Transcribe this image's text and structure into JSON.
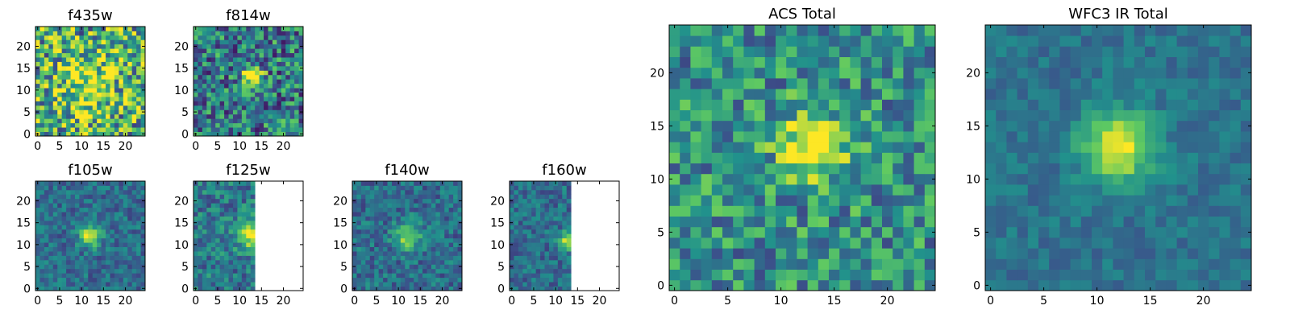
{
  "chart_data": [
    {
      "type": "heatmap",
      "title": "f435w",
      "xlim": [
        0,
        24
      ],
      "ylim": [
        0,
        24
      ],
      "xticks": [
        "0",
        "5",
        "10",
        "15",
        "20"
      ],
      "yticks": [
        "0",
        "5",
        "10",
        "15",
        "20"
      ],
      "source_center": [
        11,
        11
      ],
      "peak": 0.35,
      "sigma": 4.5,
      "noise": 0.45,
      "base": 0.62,
      "seed": 11,
      "blank_from_x": null
    },
    {
      "type": "heatmap",
      "title": "f814w",
      "xlim": [
        0,
        24
      ],
      "ylim": [
        0,
        24
      ],
      "xticks": [
        "0",
        "5",
        "10",
        "15",
        "20"
      ],
      "yticks": [
        "0",
        "5",
        "10",
        "15",
        "20"
      ],
      "source_center": [
        13,
        13
      ],
      "peak": 0.75,
      "sigma": 1.6,
      "noise": 0.35,
      "base": 0.42,
      "seed": 23,
      "blank_from_x": null
    },
    {
      "type": "heatmap",
      "title": "f105w",
      "xlim": [
        0,
        24
      ],
      "ylim": [
        0,
        24
      ],
      "xticks": [
        "0",
        "5",
        "10",
        "15",
        "20"
      ],
      "yticks": [
        "0",
        "5",
        "10",
        "15",
        "20"
      ],
      "source_center": [
        12,
        12
      ],
      "peak": 0.65,
      "sigma": 1.6,
      "noise": 0.16,
      "base": 0.36,
      "seed": 37,
      "blank_from_x": null
    },
    {
      "type": "heatmap",
      "title": "f125w",
      "xlim": [
        0,
        24
      ],
      "ylim": [
        0,
        24
      ],
      "xticks": [
        "0",
        "5",
        "10",
        "15",
        "20"
      ],
      "yticks": [
        "0",
        "5",
        "10",
        "15",
        "20"
      ],
      "source_center": [
        13,
        12
      ],
      "peak": 0.6,
      "sigma": 2.2,
      "noise": 0.2,
      "base": 0.4,
      "seed": 41,
      "blank_from_x": 14
    },
    {
      "type": "heatmap",
      "title": "f140w",
      "xlim": [
        0,
        24
      ],
      "ylim": [
        0,
        24
      ],
      "xticks": [
        "0",
        "5",
        "10",
        "15",
        "20"
      ],
      "yticks": [
        "0",
        "5",
        "10",
        "15",
        "20"
      ],
      "source_center": [
        12,
        12
      ],
      "peak": 0.5,
      "sigma": 2.0,
      "noise": 0.17,
      "base": 0.36,
      "seed": 53,
      "blank_from_x": null
    },
    {
      "type": "heatmap",
      "title": "f160w",
      "xlim": [
        0,
        24
      ],
      "ylim": [
        0,
        24
      ],
      "xticks": [
        "0",
        "5",
        "10",
        "15",
        "20"
      ],
      "yticks": [
        "0",
        "5",
        "10",
        "15",
        "20"
      ],
      "source_center": [
        13,
        11
      ],
      "peak": 0.6,
      "sigma": 1.4,
      "noise": 0.16,
      "base": 0.36,
      "seed": 67,
      "blank_from_x": 14
    },
    {
      "type": "heatmap",
      "title": "ACS Total",
      "xlim": [
        0,
        24
      ],
      "ylim": [
        0,
        24
      ],
      "xticks": [
        "0",
        "5",
        "10",
        "15",
        "20"
      ],
      "yticks": [
        "0",
        "5",
        "10",
        "15",
        "20"
      ],
      "source_center": [
        13,
        13
      ],
      "peak": 0.55,
      "sigma": 2.2,
      "noise": 0.28,
      "base": 0.5,
      "seed": 79,
      "blank_from_x": null
    },
    {
      "type": "heatmap",
      "title": "WFC3 IR Total",
      "xlim": [
        0,
        24
      ],
      "ylim": [
        0,
        24
      ],
      "xticks": [
        "0",
        "5",
        "10",
        "15",
        "20"
      ],
      "yticks": [
        "0",
        "5",
        "10",
        "15",
        "20"
      ],
      "source_center": [
        12,
        13
      ],
      "peak": 0.62,
      "sigma": 2.3,
      "noise": 0.1,
      "base": 0.38,
      "seed": 97,
      "blank_from_x": null
    }
  ],
  "colormap": [
    "#440154",
    "#3b528b",
    "#21918c",
    "#5ec962",
    "#fde725"
  ]
}
